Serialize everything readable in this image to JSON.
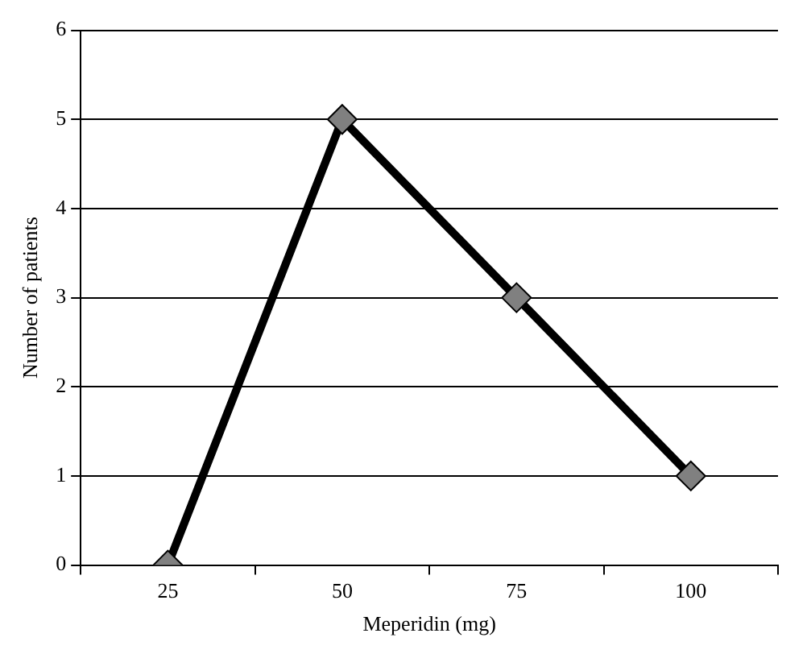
{
  "chart_data": {
    "type": "line",
    "xlabel": "Meperidin (mg)",
    "ylabel": "Number of patients",
    "categories": [
      "25",
      "50",
      "75",
      "100"
    ],
    "series": [
      {
        "color": "#808080",
        "values": [
          0,
          5,
          3,
          1
        ]
      }
    ],
    "ylim": [
      0,
      6
    ],
    "yticks": [
      0,
      1,
      2,
      3,
      4,
      5,
      6
    ],
    "grid": "y",
    "marker": "diamond",
    "line_style": "solid",
    "legend": false
  }
}
